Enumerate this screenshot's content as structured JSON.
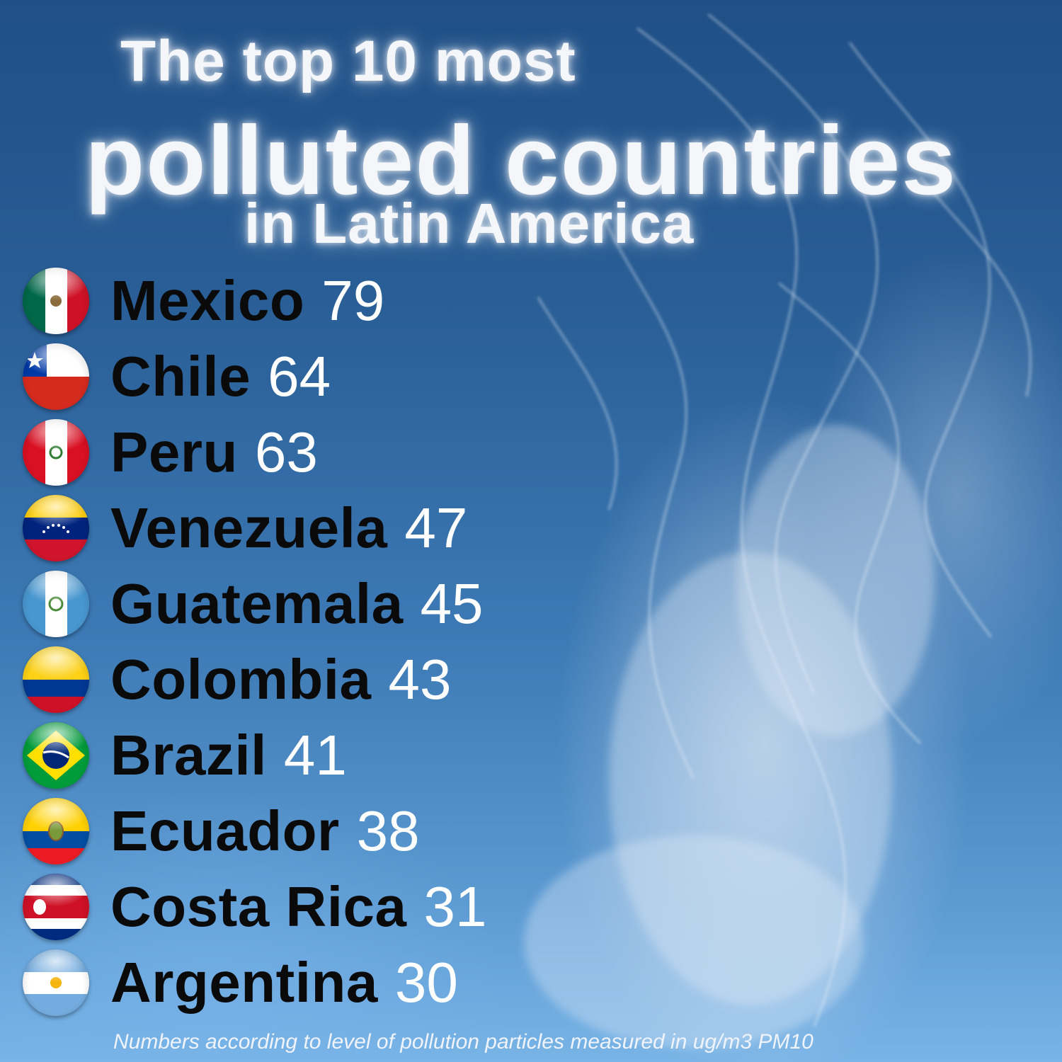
{
  "title": {
    "line1": "The top 10 most",
    "line2": "polluted countries",
    "line3": "in Latin America"
  },
  "countries": [
    {
      "name": "Mexico",
      "value": "79",
      "flag": "mexico-flag-icon"
    },
    {
      "name": "Chile",
      "value": "64",
      "flag": "chile-flag-icon"
    },
    {
      "name": "Peru",
      "value": "63",
      "flag": "peru-flag-icon"
    },
    {
      "name": "Venezuela",
      "value": "47",
      "flag": "venezuela-flag-icon"
    },
    {
      "name": "Guatemala",
      "value": "45",
      "flag": "guatemala-flag-icon"
    },
    {
      "name": "Colombia",
      "value": "43",
      "flag": "colombia-flag-icon"
    },
    {
      "name": "Brazil",
      "value": "41",
      "flag": "brazil-flag-icon"
    },
    {
      "name": "Ecuador",
      "value": "38",
      "flag": "ecuador-flag-icon"
    },
    {
      "name": "Costa Rica",
      "value": "31",
      "flag": "costa-rica-flag-icon"
    },
    {
      "name": "Argentina",
      "value": "30",
      "flag": "argentina-flag-icon"
    }
  ],
  "footnote": "Numbers according to level of pollution particles measured in ug/m3 PM10",
  "colors": {
    "background_top": "#1f4f86",
    "background_bottom": "#79b4e6",
    "name_text": "#0a0a0a",
    "value_text": "#ffffff",
    "title_text": "#f4f6fa"
  }
}
